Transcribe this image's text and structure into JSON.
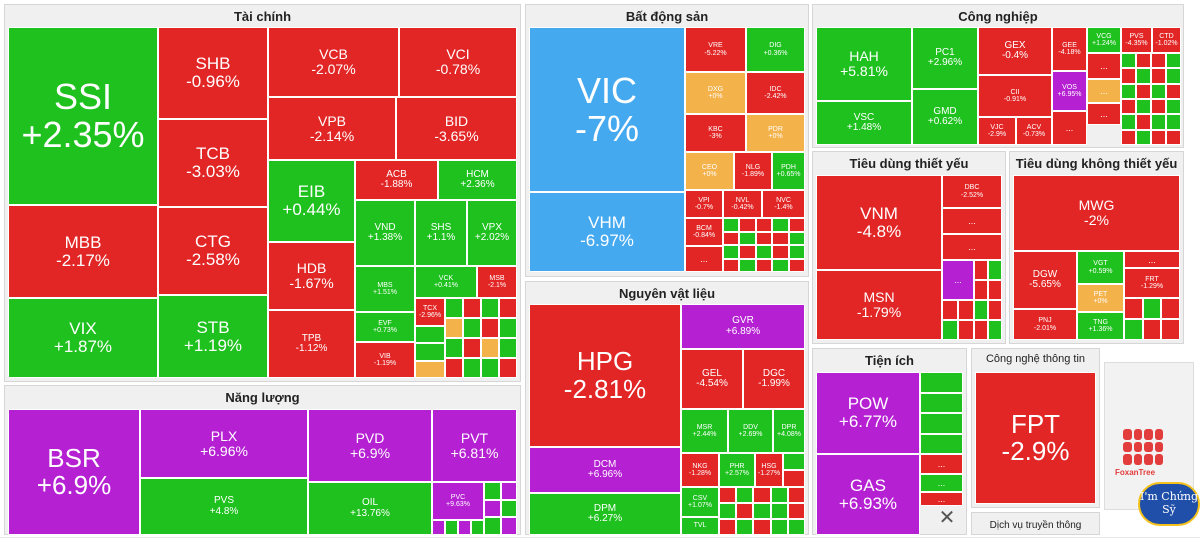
{
  "sectors": {
    "tai_chinh": "Tài chính",
    "bat_dong_san": "Bất động sản",
    "cong_nghiep": "Công nghiệp",
    "nang_luong": "Năng lượng",
    "nguyen_vat_lieu": "Nguyên vật liệu",
    "tieu_dung_thiet_yeu": "Tiêu dùng thiết yếu",
    "tieu_dung_khong_thiet_yeu": "Tiêu dùng không thiết yếu",
    "tien_ich": "Tiện ích",
    "cong_nghe_thong_tin": "Công nghệ thông tin",
    "dich_vu_truyen_thong": "Dịch vụ truyền thông"
  },
  "stocks": {
    "SSI": {
      "ticker": "SSI",
      "change": "+2.35%"
    },
    "SHB": {
      "ticker": "SHB",
      "change": "-0.96%"
    },
    "VCB": {
      "ticker": "VCB",
      "change": "-2.07%"
    },
    "VCI": {
      "ticker": "VCI",
      "change": "-0.78%"
    },
    "VPB": {
      "ticker": "VPB",
      "change": "-2.14%"
    },
    "BID": {
      "ticker": "BID",
      "change": "-3.65%"
    },
    "TCB": {
      "ticker": "TCB",
      "change": "-3.03%"
    },
    "MBB": {
      "ticker": "MBB",
      "change": "-2.17%"
    },
    "CTG": {
      "ticker": "CTG",
      "change": "-2.58%"
    },
    "EIB": {
      "ticker": "EIB",
      "change": "+0.44%"
    },
    "ACB": {
      "ticker": "ACB",
      "change": "-1.88%"
    },
    "HCM": {
      "ticker": "HCM",
      "change": "+2.36%"
    },
    "VND": {
      "ticker": "VND",
      "change": "+1.38%"
    },
    "SHS": {
      "ticker": "SHS",
      "change": "+1.1%"
    },
    "VPX": {
      "ticker": "VPX",
      "change": "+2.02%"
    },
    "HDB": {
      "ticker": "HDB",
      "change": "-1.67%"
    },
    "MBS": {
      "ticker": "MBS",
      "change": "+1.51%"
    },
    "VCK": {
      "ticker": "VCK",
      "change": "+0.41%"
    },
    "MSB": {
      "ticker": "MSB",
      "change": "-2.1%"
    },
    "VIX": {
      "ticker": "VIX",
      "change": "+1.87%"
    },
    "STB": {
      "ticker": "STB",
      "change": "+1.19%"
    },
    "TPB": {
      "ticker": "TPB",
      "change": "-1.12%"
    },
    "EVF": {
      "ticker": "EVF",
      "change": "+0.73%"
    },
    "TCX": {
      "ticker": "TCX",
      "change": "-2.96%"
    },
    "VIB": {
      "ticker": "VIB",
      "change": "-1.19%"
    },
    "VIC": {
      "ticker": "VIC",
      "change": "-7%"
    },
    "VHM": {
      "ticker": "VHM",
      "change": "-6.97%"
    },
    "VRE": {
      "ticker": "VRE",
      "change": "-5.22%"
    },
    "DIG": {
      "ticker": "DIG",
      "change": "+0.36%"
    },
    "DXG": {
      "ticker": "DXG",
      "change": "+0%"
    },
    "IDC": {
      "ticker": "IDC",
      "change": "-2.42%"
    },
    "KBC": {
      "ticker": "KBC",
      "change": "-3%"
    },
    "PDR": {
      "ticker": "PDR",
      "change": "+0%"
    },
    "CEO": {
      "ticker": "CEO",
      "change": "+0%"
    },
    "NLG": {
      "ticker": "NLG",
      "change": "-1.89%"
    },
    "PDH": {
      "ticker": "PDH",
      "change": "+0.65%"
    },
    "VPI": {
      "ticker": "VPI",
      "change": "-0.7%"
    },
    "NVL": {
      "ticker": "NVL",
      "change": "-0.42%"
    },
    "NVC": {
      "ticker": "NVC",
      "change": "-1.4%"
    },
    "BCM": {
      "ticker": "BCM",
      "change": "-0.84%"
    },
    "HAH": {
      "ticker": "HAH",
      "change": "+5.81%"
    },
    "PC1": {
      "ticker": "PC1",
      "change": "+2.96%"
    },
    "GEX": {
      "ticker": "GEX",
      "change": "-0.4%"
    },
    "GEE": {
      "ticker": "GEE",
      "change": "-4.18%"
    },
    "VCG": {
      "ticker": "VCG",
      "change": "+1.24%"
    },
    "PVT2": {
      "ticker": "PVS",
      "change": "-4.35%"
    },
    "CTD": {
      "ticker": "CTD",
      "change": "-1.02%"
    },
    "VSC": {
      "ticker": "VSC",
      "change": "+1.48%"
    },
    "GMD": {
      "ticker": "GMD",
      "change": "+0.62%"
    },
    "CII": {
      "ticker": "CII",
      "change": "-0.91%"
    },
    "VOS": {
      "ticker": "VOS",
      "change": "+6.95%"
    },
    "VJC": {
      "ticker": "VJC",
      "change": "-2.9%"
    },
    "ACV": {
      "ticker": "ACV",
      "change": "-0.73%"
    },
    "BSR": {
      "ticker": "BSR",
      "change": "+6.9%"
    },
    "PLX": {
      "ticker": "PLX",
      "change": "+6.96%"
    },
    "PVD": {
      "ticker": "PVD",
      "change": "+6.9%"
    },
    "PVT": {
      "ticker": "PVT",
      "change": "+6.81%"
    },
    "PVS": {
      "ticker": "PVS",
      "change": "+4.8%"
    },
    "OIL": {
      "ticker": "OIL",
      "change": "+13.76%"
    },
    "PVC": {
      "ticker": "PVC",
      "change": "+9.63%"
    },
    "HPG": {
      "ticker": "HPG",
      "change": "-2.81%"
    },
    "GVR": {
      "ticker": "GVR",
      "change": "+6.89%"
    },
    "GEL": {
      "ticker": "GEL",
      "change": "-4.54%"
    },
    "DGC": {
      "ticker": "DGC",
      "change": "-1.99%"
    },
    "MSR": {
      "ticker": "MSR",
      "change": "+2.44%"
    },
    "DDV": {
      "ticker": "DDV",
      "change": "+2.69%"
    },
    "DPR": {
      "ticker": "DPR",
      "change": "+4.08%"
    },
    "DCM": {
      "ticker": "DCM",
      "change": "+6.96%"
    },
    "NKG": {
      "ticker": "NKG",
      "change": "-1.28%"
    },
    "PHR": {
      "ticker": "PHR",
      "change": "+2.57%"
    },
    "HSG": {
      "ticker": "HSG",
      "change": "-1.27%"
    },
    "DPM": {
      "ticker": "DPM",
      "change": "+6.27%"
    },
    "CSV": {
      "ticker": "CSV",
      "change": "+1.07%"
    },
    "TVL": {
      "ticker": "TVL",
      "change": "..."
    },
    "VNM": {
      "ticker": "VNM",
      "change": "-4.8%"
    },
    "DBC": {
      "ticker": "DBC",
      "change": "-2.52%"
    },
    "MSN": {
      "ticker": "MSN",
      "change": "-1.79%"
    },
    "MWG": {
      "ticker": "MWG",
      "change": "-2%"
    },
    "DGW": {
      "ticker": "DGW",
      "change": "-5.65%"
    },
    "VGT": {
      "ticker": "VGT",
      "change": "+0.59%"
    },
    "FRT": {
      "ticker": "FRT",
      "change": "-1.29%"
    },
    "PET": {
      "ticker": "PET",
      "change": "+0%"
    },
    "PNJ": {
      "ticker": "PNJ",
      "change": "-2.01%"
    },
    "TNG": {
      "ticker": "TNG",
      "change": "+1.36%"
    },
    "POW": {
      "ticker": "POW",
      "change": "+6.77%"
    },
    "GAS": {
      "ticker": "GAS",
      "change": "+6.93%"
    },
    "FPT": {
      "ticker": "FPT",
      "change": "-2.9%"
    }
  },
  "dots": "...",
  "logo_text": "FoxanTree",
  "close_label": "✕",
  "badge_text": "I'm Chứng Sỹ",
  "colors": {
    "up": "#1fc11f",
    "down": "#e22626",
    "ceiling": "#b520d2",
    "flat": "#f4b24b",
    "floor": "#45a9ef"
  }
}
